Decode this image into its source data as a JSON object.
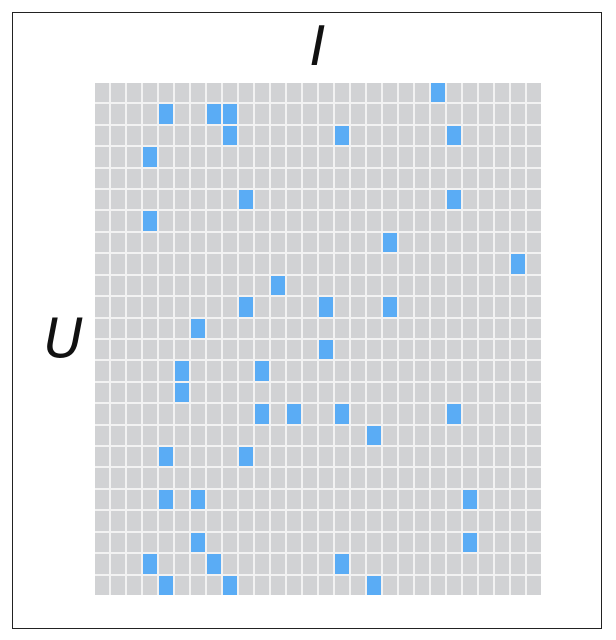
{
  "labels": {
    "columns": "I",
    "rows": "U"
  },
  "grid": {
    "rows": 24,
    "cols": 28,
    "colors": {
      "empty": "#d1d2d4",
      "filled": "#5aacf5"
    },
    "filled": [
      [
        0,
        21
      ],
      [
        1,
        4
      ],
      [
        1,
        7
      ],
      [
        1,
        8
      ],
      [
        2,
        8
      ],
      [
        2,
        15
      ],
      [
        2,
        22
      ],
      [
        3,
        3
      ],
      [
        5,
        9
      ],
      [
        5,
        22
      ],
      [
        6,
        3
      ],
      [
        7,
        18
      ],
      [
        8,
        26
      ],
      [
        9,
        11
      ],
      [
        10,
        9
      ],
      [
        10,
        14
      ],
      [
        10,
        18
      ],
      [
        11,
        6
      ],
      [
        12,
        14
      ],
      [
        13,
        5
      ],
      [
        13,
        10
      ],
      [
        14,
        5
      ],
      [
        15,
        10
      ],
      [
        15,
        12
      ],
      [
        15,
        15
      ],
      [
        15,
        22
      ],
      [
        16,
        17
      ],
      [
        17,
        4
      ],
      [
        17,
        9
      ],
      [
        19,
        4
      ],
      [
        19,
        6
      ],
      [
        19,
        23
      ],
      [
        21,
        6
      ],
      [
        21,
        23
      ],
      [
        22,
        3
      ],
      [
        22,
        7
      ],
      [
        22,
        15
      ],
      [
        23,
        4
      ],
      [
        23,
        8
      ],
      [
        23,
        17
      ]
    ]
  }
}
